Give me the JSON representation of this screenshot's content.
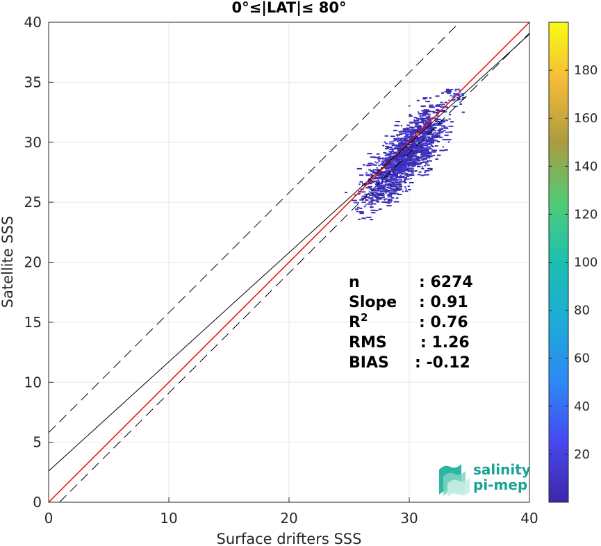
{
  "chart_data": {
    "type": "scatter",
    "title": "0°≤|LAT|≤ 80°",
    "xlabel": "Surface drifters SSS",
    "ylabel": "Satellite SSS",
    "xlim": [
      0,
      40
    ],
    "ylim": [
      0,
      40
    ],
    "xticks": [
      "0",
      "10",
      "20",
      "30",
      "40"
    ],
    "yticks": [
      "0",
      "5",
      "10",
      "15",
      "20",
      "25",
      "30",
      "35",
      "40"
    ],
    "grid": true,
    "colorbar": {
      "range": [
        0,
        200
      ],
      "ticks": [
        "20",
        "40",
        "60",
        "80",
        "100",
        "120",
        "140",
        "160",
        "180"
      ],
      "colormap": [
        "#3e26a8",
        "#4748f0",
        "#2e87f7",
        "#1cacd7",
        "#1cbfb0",
        "#51cc76",
        "#ab9c3f",
        "#f4b93a",
        "#f9fb15"
      ]
    },
    "lines": [
      {
        "kind": "identity",
        "color": "#ff0000",
        "slope": 1.0,
        "intercept": 0.0
      },
      {
        "kind": "regression",
        "color": "#000000",
        "slope": 0.91,
        "intercept": 2.6
      },
      {
        "kind": "upper-bound",
        "color": "#000000",
        "dash": true,
        "slope": 1.0,
        "intercept": 5.8
      },
      {
        "kind": "lower-bound",
        "color": "#000000",
        "dash": true,
        "slope": 1.0,
        "intercept": -0.9
      }
    ],
    "density_cluster": {
      "x_range": [
        23.5,
        34.5
      ],
      "y_range": [
        23.5,
        34.5
      ],
      "center": [
        29.5,
        28.5
      ],
      "dominant_count": 10
    },
    "stats": [
      {
        "label": "n",
        "value": ": 6274"
      },
      {
        "label": "Slope",
        "value": ": 0.91"
      },
      {
        "label": "R",
        "sup": "2",
        "value": ": 0.76"
      },
      {
        "label": "RMS",
        "value": ": 1.26"
      },
      {
        "label": "BIAS",
        "value": ": -0.12"
      }
    ]
  },
  "logo": {
    "line1": "salinity",
    "line2": "pi-mep"
  }
}
